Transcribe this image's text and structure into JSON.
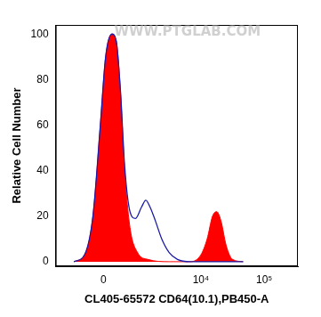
{
  "chart_data": {
    "type": "histogram",
    "x_label": "CL405-65572 CD64(10.1),PB450-A",
    "y_label": "Relative Cell Number",
    "annotations": [
      "WWW.PTGLAB.COM"
    ],
    "series": [
      {
        "type": "area",
        "color": "#ff0000",
        "x": [
          -754,
          -434,
          -229,
          -67,
          45,
          181,
          277,
          380,
          491,
          648,
          917,
          1398,
          3126,
          6790,
          9980,
          12540,
          15250,
          17760,
          20710,
          25140,
          31600,
          46460
        ],
        "values": [
          0,
          3,
          20,
          60,
          90,
          100,
          97,
          75,
          40,
          15,
          4,
          1,
          0,
          0,
          3,
          10,
          20,
          22,
          18,
          7,
          1,
          0
        ]
      },
      {
        "type": "line",
        "color": "#1a1aa6",
        "x": [
          -754,
          -434,
          -229,
          -67,
          45,
          181,
          277,
          380,
          491,
          648,
          837,
          1083,
          1288,
          1520,
          1865,
          2372,
          3126,
          4257,
          6790,
          46460
        ],
        "values": [
          0,
          3,
          20,
          60,
          90,
          100,
          97,
          75,
          42,
          22,
          19,
          24,
          27,
          24,
          18,
          10,
          4,
          1,
          0,
          0
        ]
      }
    ],
    "xlim": [
      -1600,
      340000
    ],
    "xticks": [
      0,
      {
        "value": 10000,
        "label": "10⁴"
      },
      {
        "value": 100000,
        "label": "10⁵"
      }
    ],
    "ylim": [
      -2,
      104
    ],
    "yticks": [
      0,
      20,
      40,
      60,
      80,
      100
    ],
    "grid": false
  }
}
